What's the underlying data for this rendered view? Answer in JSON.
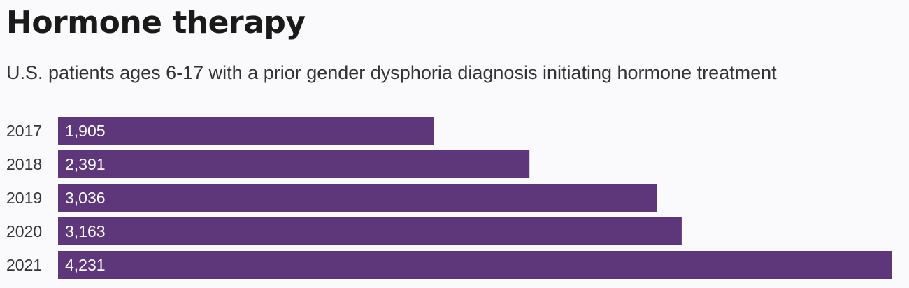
{
  "title": "Hormone therapy",
  "subtitle": "U.S. patients ages 6-17 with a prior gender dysphoria diagnosis initiating hormone treatment",
  "colors": {
    "bar": "#5d3779",
    "background": "#faf9fb"
  },
  "chart_data": {
    "type": "bar",
    "orientation": "horizontal",
    "title": "Hormone therapy",
    "subtitle": "U.S. patients ages 6-17 with a prior gender dysphoria diagnosis initiating hormone treatment",
    "categories": [
      "2017",
      "2018",
      "2019",
      "2020",
      "2021"
    ],
    "values": [
      1905,
      2391,
      3036,
      3163,
      4231
    ],
    "value_labels": [
      "1,905",
      "2,391",
      "3,036",
      "3,163",
      "4,231"
    ],
    "xlim": [
      0,
      4231
    ],
    "grid": false,
    "legend": "none"
  }
}
